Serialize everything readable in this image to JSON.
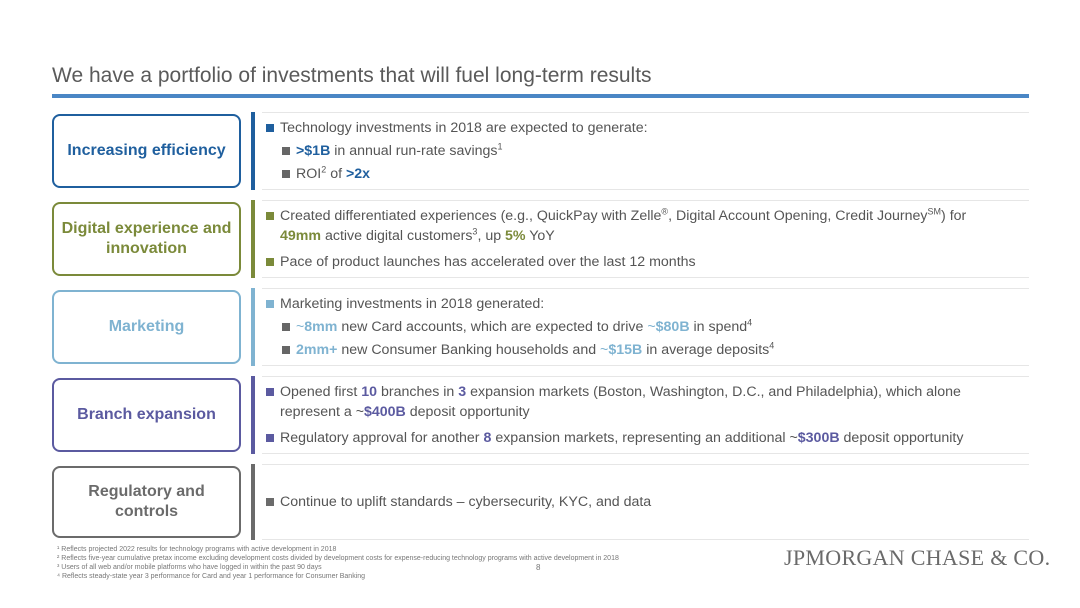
{
  "title": "We have a portfolio of investments that will fuel long-term results",
  "colors": {
    "title_rule": "#4a86c5",
    "efficiency": "#1f5f9e",
    "digital": "#7b8a3a",
    "marketing": "#7fb3d1",
    "branch": "#5b5aa0",
    "regulatory": "#6b6b6b"
  },
  "sections": {
    "efficiency": {
      "label": "Increasing efficiency",
      "b1_text": "Technology investments in 2018 are expected to generate:",
      "s1_val": ">$1B",
      "s1_text": " in annual run-rate savings",
      "s1_sup": "1",
      "s2_a": "ROI",
      "s2_sup": "2",
      "s2_b": " of ",
      "s2_val": ">2x"
    },
    "digital": {
      "label": "Digital experience and innovation",
      "b1_a": "Created differentiated experiences (e.g., QuickPay with Zelle",
      "b1_reg": "®",
      "b1_b": ", Digital Account Opening, Credit Journey",
      "b1_sm": "SM",
      "b1_c": ") for",
      "b1_val1": "49mm",
      "b1_d": " active digital customers",
      "b1_sup": "3",
      "b1_e": ", up ",
      "b1_val2": "5%",
      "b1_f": " YoY",
      "b2_text": "Pace of product launches has accelerated over the last 12 months"
    },
    "marketing": {
      "label": "Marketing",
      "b1_text": "Marketing investments in 2018 generated:",
      "s1_a": "~",
      "s1_val1": "8mm",
      "s1_b": " new Card accounts, which are expected to drive ",
      "s1_c": "~",
      "s1_val2": "$80B",
      "s1_d": " in spend",
      "s1_sup": "4",
      "s2_val1": "2mm+",
      "s2_a": " new Consumer Banking households and ",
      "s2_b": "~",
      "s2_val2": "$15B",
      "s2_c": " in average deposits",
      "s2_sup": "4"
    },
    "branch": {
      "label": "Branch expansion",
      "b1_a": "Opened first ",
      "b1_val1": "10",
      "b1_b": " branches in ",
      "b1_val2": "3",
      "b1_c": " expansion markets (Boston, Washington, D.C., and Philadelphia), which alone",
      "b1_d": "represent a ~",
      "b1_val3": "$400B",
      "b1_e": " deposit opportunity",
      "b2_a": "Regulatory approval for another ",
      "b2_val1": "8",
      "b2_b": " expansion markets, representing an additional ~",
      "b2_val2": "$300B",
      "b2_c": " deposit opportunity"
    },
    "regulatory": {
      "label": "Regulatory and controls",
      "b1_text": "Continue to uplift standards – cybersecurity, KYC, and data"
    }
  },
  "footnotes": [
    "¹ Reflects projected 2022 results for technology programs with active development in 2018",
    "² Reflects five-year cumulative pretax income excluding development costs divided by development costs for expense-reducing technology programs with active development in 2018",
    "³ Users of all web and/or mobile platforms who have logged in within the past 90 days",
    "⁴ Reflects steady-state year 3 performance for Card and year 1 performance for Consumer Banking"
  ],
  "page_number": "8",
  "logo": "JPMORGAN CHASE & CO."
}
